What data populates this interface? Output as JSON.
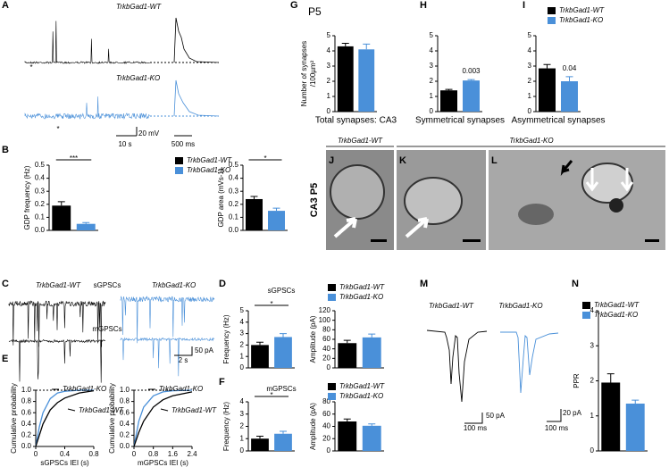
{
  "figure": {
    "panel_labels": [
      "A",
      "B",
      "C",
      "D",
      "E",
      "F",
      "G",
      "H",
      "I",
      "J",
      "K",
      "L",
      "M",
      "N"
    ],
    "a": {
      "wt": "TrkbGad1-WT",
      "ko": "TrkbGad1-KO",
      "star1": "*",
      "star2": "*",
      "scale_v": "20 mV",
      "scale_t1": "10 s",
      "scale_t2": "500 ms"
    },
    "c": {
      "wt": "TrkbGad1-WT",
      "ko": "TrkbGad1-KO",
      "s": "sGPSCs",
      "m": "mGPSCs",
      "scale_v": "50 pA",
      "scale_t": "2 s"
    },
    "em": {
      "row": "CA3 P5",
      "wt": "TrkbGad1-WT",
      "ko": "TrkbGad1-KO"
    },
    "g": {
      "age": "P5"
    },
    "m": {
      "wt": "TrkbGad1-WT",
      "ko": "TrkbGad1-KO",
      "scale_v1": "50 pA",
      "scale_t1": "100 ms",
      "scale_v2": "20 pA",
      "scale_t2": "100 ms"
    }
  },
  "chart_data": [
    {
      "type": "bar",
      "ylabel": "GDP frequency (Hz)",
      "ylim": [
        0,
        0.5
      ],
      "yticks": [
        {
          "value": 0,
          "label": "0.0"
        },
        0.1,
        0.2,
        0.3,
        0.4,
        0.5
      ],
      "annotation": "***",
      "series": [
        {
          "color": "#000000",
          "values": [
            0.19
          ],
          "errors": [
            0.03
          ]
        },
        {
          "color": "#4a90d9",
          "values": [
            0.05
          ],
          "errors": [
            0.01
          ]
        }
      ]
    },
    {
      "type": "bar",
      "ylabel": "GDP area (mVs-1)",
      "ylim": [
        0,
        0.5
      ],
      "yticks": [
        {
          "value": 0,
          "label": "0.0"
        },
        0.1,
        0.2,
        0.3,
        0.4,
        0.5
      ],
      "annotation": "*",
      "series": [
        {
          "name": "TrkbGad1-WT",
          "color": "#000000",
          "values": [
            0.24
          ],
          "errors": [
            0.02
          ]
        },
        {
          "name": "TrkbGad1-KO",
          "color": "#4a90d9",
          "values": [
            0.15
          ],
          "errors": [
            0.02
          ]
        }
      ]
    },
    {
      "type": "bar",
      "title": "sGPSCs",
      "ylabel": "Frequency (Hz)",
      "ylim": [
        0,
        5
      ],
      "yticks": [
        0,
        1,
        2,
        3,
        4,
        5
      ],
      "annotation": "*",
      "series": [
        {
          "color": "#000000",
          "values": [
            2.0
          ],
          "errors": [
            0.25
          ]
        },
        {
          "color": "#4a90d9",
          "values": [
            2.7
          ],
          "errors": [
            0.3
          ]
        }
      ]
    },
    {
      "type": "bar",
      "ylabel": "Amplitude (pA)",
      "ylim": [
        0,
        120
      ],
      "yticks": [
        0,
        20,
        40,
        60,
        80,
        100,
        120
      ],
      "series": [
        {
          "name": "TrkbGad1-WT",
          "color": "#000000",
          "values": [
            52
          ],
          "errors": [
            6
          ]
        },
        {
          "name": "TrkbGad1-KO",
          "color": "#4a90d9",
          "values": [
            64
          ],
          "errors": [
            7
          ]
        }
      ]
    },
    {
      "type": "bar",
      "title": "mGPSCs",
      "ylabel": "Frequency (Hz)",
      "ylim": [
        0,
        4
      ],
      "yticks": [
        0,
        1,
        2,
        3,
        4
      ],
      "annotation": "*",
      "series": [
        {
          "color": "#000000",
          "values": [
            1.0
          ],
          "errors": [
            0.2
          ]
        },
        {
          "color": "#4a90d9",
          "values": [
            1.4
          ],
          "errors": [
            0.2
          ]
        }
      ]
    },
    {
      "type": "bar",
      "ylabel": "Amplitude (pA)",
      "ylim": [
        0,
        80
      ],
      "yticks": [
        0,
        20,
        40,
        60,
        80
      ],
      "series": [
        {
          "name": "TrkbGad1-WT",
          "color": "#000000",
          "values": [
            48
          ],
          "errors": [
            4
          ]
        },
        {
          "name": "TrkbGad1-KO",
          "color": "#4a90d9",
          "values": [
            41
          ],
          "errors": [
            3
          ]
        }
      ]
    },
    {
      "type": "line",
      "ylabel": "Cumulative probability",
      "xlabel": "sGPSCs IEI (s)",
      "xlim": [
        0,
        0.8
      ],
      "xticks": [
        0,
        0.4,
        0.8
      ],
      "ylim": [
        0,
        1
      ],
      "yticks": [
        {
          "value": 0,
          "label": "0.0"
        },
        0.2,
        0.4,
        0.6,
        0.8,
        {
          "value": 1,
          "label": "1.0"
        }
      ],
      "series": [
        {
          "name": "TrkbGad1-KO",
          "color": "#4a90d9",
          "x": [
            0,
            0.05,
            0.1,
            0.2,
            0.3,
            0.4,
            0.6,
            0.8
          ],
          "values": [
            0,
            0.35,
            0.6,
            0.85,
            0.95,
            0.98,
            1,
            1
          ]
        },
        {
          "name": "TrkbGad1-WT",
          "color": "#000000",
          "x": [
            0,
            0.05,
            0.1,
            0.2,
            0.3,
            0.4,
            0.6,
            0.8
          ],
          "values": [
            0,
            0.2,
            0.4,
            0.65,
            0.78,
            0.86,
            0.95,
            0.99
          ]
        }
      ]
    },
    {
      "type": "line",
      "ylabel": "Cumulative probability",
      "xlabel": "mGPSCs IEI (s)",
      "xlim": [
        0,
        2.4
      ],
      "xticks": [
        0,
        0.8,
        1.6,
        2.4
      ],
      "ylim": [
        0,
        1
      ],
      "yticks": [
        {
          "value": 0,
          "label": "0.0"
        },
        0.2,
        0.4,
        0.6,
        0.8,
        {
          "value": 1,
          "label": "1.0"
        }
      ],
      "series": [
        {
          "name": "TrkbGad1-KO",
          "color": "#4a90d9",
          "x": [
            0,
            0.2,
            0.4,
            0.8,
            1.2,
            1.6,
            2.4
          ],
          "values": [
            0,
            0.45,
            0.7,
            0.9,
            0.97,
            0.99,
            1
          ]
        },
        {
          "name": "TrkbGad1-WT",
          "color": "#000000",
          "x": [
            0,
            0.2,
            0.4,
            0.8,
            1.2,
            1.6,
            2.4
          ],
          "values": [
            0,
            0.25,
            0.45,
            0.7,
            0.83,
            0.9,
            0.97
          ]
        }
      ]
    },
    {
      "type": "bar",
      "ylabel": [
        "Number of synapses",
        "/100µm²"
      ],
      "xlabel": "Total synapses: CA3",
      "ylim": [
        0,
        5
      ],
      "yticks": [
        0,
        1,
        2,
        3,
        4,
        5
      ],
      "series": [
        {
          "color": "#000000",
          "values": [
            4.3
          ],
          "errors": [
            0.2
          ]
        },
        {
          "color": "#4a90d9",
          "values": [
            4.1
          ],
          "errors": [
            0.35
          ]
        }
      ]
    },
    {
      "type": "bar",
      "xlabel": "Symmetrical synapses",
      "ylim": [
        0,
        5
      ],
      "yticks": [
        0,
        1,
        2,
        3,
        4,
        5
      ],
      "annotation": "0.003",
      "series": [
        {
          "color": "#000000",
          "values": [
            1.4
          ],
          "errors": [
            0.06
          ]
        },
        {
          "color": "#4a90d9",
          "values": [
            2.05
          ],
          "errors": [
            0.06
          ]
        }
      ]
    },
    {
      "type": "bar",
      "xlabel": "Asymmetrical synapses",
      "ylim": [
        0,
        5
      ],
      "yticks": [
        0,
        1,
        2,
        3,
        4,
        5
      ],
      "annotation": "0.04",
      "series": [
        {
          "name": "TrkbGad1-WT",
          "color": "#000000",
          "values": [
            2.85
          ],
          "errors": [
            0.25
          ]
        },
        {
          "name": "TrkbGad1-KO",
          "color": "#4a90d9",
          "values": [
            2.0
          ],
          "errors": [
            0.3
          ]
        }
      ]
    },
    {
      "type": "bar",
      "ylabel": "PPR",
      "ylim": [
        0,
        4
      ],
      "yticks": [
        0,
        1,
        2,
        3,
        4
      ],
      "series": [
        {
          "name": "TrkbGad1-WT",
          "color": "#000000",
          "values": [
            1.95
          ],
          "errors": [
            0.25
          ]
        },
        {
          "name": "TrkbGad1-KO",
          "color": "#4a90d9",
          "values": [
            1.35
          ],
          "errors": [
            0.1
          ]
        }
      ]
    }
  ]
}
